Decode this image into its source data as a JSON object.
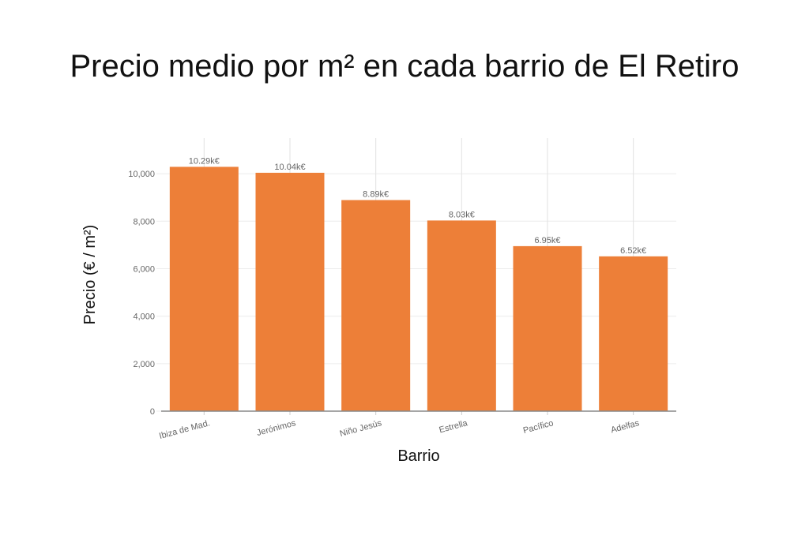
{
  "chart_data": {
    "type": "bar",
    "title": "Precio medio por m² en cada barrio de El Retiro",
    "xlabel": "Barrio",
    "ylabel": "Precio (€ / m²)",
    "categories": [
      "Ibiza de Mad.",
      "Jerónimos",
      "Niño Jesús",
      "Estrella",
      "Pacífico",
      "Adelfas"
    ],
    "values": [
      10290,
      10040,
      8890,
      8030,
      6950,
      6520
    ],
    "data_labels": [
      "10.29k€",
      "10.04k€",
      "8.89k€",
      "8.03k€",
      "6.95k€",
      "6.52k€"
    ],
    "yticks": [
      0,
      2000,
      4000,
      6000,
      8000,
      10000
    ],
    "ytick_labels": [
      "0",
      "2,000",
      "4,000",
      "6,000",
      "8,000",
      "10,000"
    ],
    "ylim": [
      0,
      11500
    ],
    "grid": true,
    "colors": {
      "bar": "#ed7f38",
      "grid": "#ececec",
      "axis": "#888888",
      "label": "#666666"
    }
  }
}
